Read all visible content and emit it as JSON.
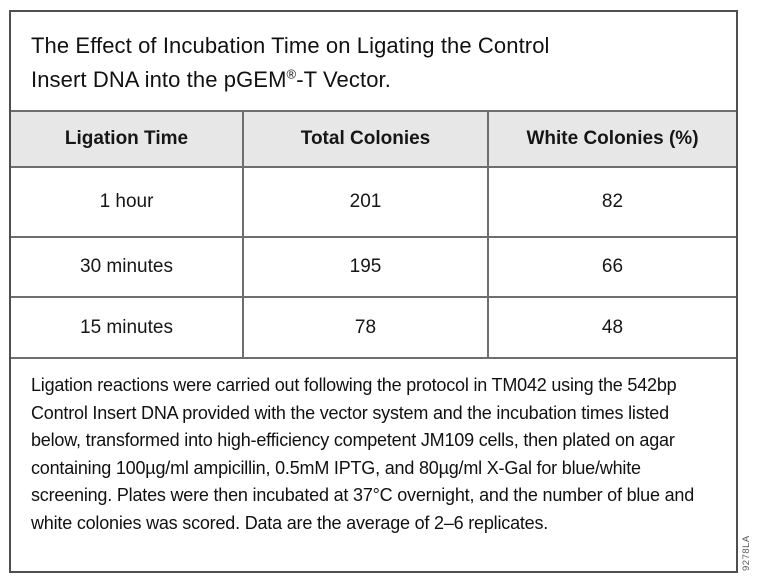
{
  "figure": {
    "title": {
      "line1": "The Effect of Incubation Time on Ligating the Control",
      "line2_pre": "Insert DNA into the pGEM",
      "line2_sup": "®",
      "line2_post": "-T Vector."
    },
    "table": {
      "headers": [
        "Ligation Time",
        "Total Colonies",
        "White Colonies (%)"
      ],
      "rows": [
        {
          "ligation_time": "1 hour",
          "total_colonies": "201",
          "white_colonies_pct": "82"
        },
        {
          "ligation_time": "30 minutes",
          "total_colonies": "195",
          "white_colonies_pct": "66"
        },
        {
          "ligation_time": "15 minutes",
          "total_colonies": "78",
          "white_colonies_pct": "48"
        }
      ]
    },
    "footnote": "Ligation reactions were carried out following the protocol in TM042 using the 542bp Control Insert DNA provided with the vector system and the incubation times listed below, transformed into high-efficiency competent JM109 cells, then plated on agar containing 100µg/ml ampicillin, 0.5mM IPTG, and 80µg/ml X-Gal for blue/white screening. Plates were then incubated at 37°C overnight, and the number of blue and white colonies was scored. Data are the average of 2–6 replicates.",
    "watermark": "9278LA",
    "colors": {
      "header_bg": "#e7e7e7",
      "inner_border": "#6e6e6e",
      "outer_border": "#4f4f4f"
    }
  }
}
